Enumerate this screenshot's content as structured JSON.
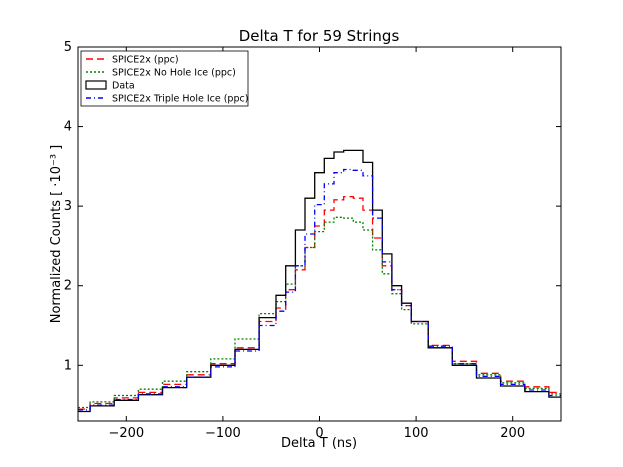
{
  "chart_data": {
    "type": "line",
    "title": "Delta T for 59 Strings",
    "xlabel": "Delta T (ns)",
    "ylabel": "Normalized Counts [ ·10⁻³ ]",
    "xlim": [
      -250,
      250
    ],
    "ylim": [
      0.3,
      5
    ],
    "xticks": [
      -200,
      -100,
      0,
      100,
      200
    ],
    "xtick_labels": [
      "−200",
      "−100",
      "0",
      "100",
      "200"
    ],
    "yticks": [
      1,
      2,
      3,
      4,
      5
    ],
    "ytick_labels": [
      "1",
      "2",
      "3",
      "4",
      "5"
    ],
    "grid": false,
    "legend_position": "top-left",
    "x": [
      -250,
      -225,
      -200,
      -175,
      -150,
      -125,
      -100,
      -75,
      -50,
      -40,
      -30,
      -20,
      -10,
      0,
      10,
      20,
      30,
      40,
      50,
      60,
      70,
      80,
      90,
      100,
      125,
      150,
      175,
      200,
      225,
      250
    ],
    "series": [
      {
        "name": "SPICE2x (ppc)",
        "color": "#ff0000",
        "dash": "7,4",
        "values": [
          0.45,
          0.52,
          0.59,
          0.66,
          0.76,
          0.88,
          1.02,
          1.22,
          1.55,
          1.72,
          1.95,
          2.2,
          2.48,
          2.75,
          2.95,
          3.08,
          3.12,
          3.1,
          2.95,
          2.6,
          2.25,
          1.95,
          1.75,
          1.55,
          1.25,
          1.05,
          0.9,
          0.8,
          0.73,
          0.66
        ]
      },
      {
        "name": "SPICE2x No Hole Ice (ppc)",
        "color": "#008000",
        "dash": "2,2",
        "values": [
          0.47,
          0.54,
          0.62,
          0.7,
          0.8,
          0.92,
          1.08,
          1.33,
          1.65,
          1.8,
          2.02,
          2.25,
          2.48,
          2.68,
          2.8,
          2.86,
          2.85,
          2.8,
          2.7,
          2.45,
          2.15,
          1.9,
          1.7,
          1.52,
          1.22,
          1.02,
          0.88,
          0.78,
          0.71,
          0.64
        ]
      },
      {
        "name": "Data",
        "color": "#000000",
        "dash": "",
        "values": [
          0.42,
          0.49,
          0.56,
          0.63,
          0.72,
          0.85,
          1.0,
          1.2,
          1.6,
          1.88,
          2.25,
          2.7,
          3.1,
          3.42,
          3.6,
          3.68,
          3.7,
          3.7,
          3.55,
          2.95,
          2.4,
          2.0,
          1.78,
          1.55,
          1.22,
          1.0,
          0.84,
          0.74,
          0.67,
          0.6
        ]
      },
      {
        "name": "SPICE2x Triple Hole Ice (ppc)",
        "color": "#0000ff",
        "dash": "5,3,1,3",
        "values": [
          0.44,
          0.5,
          0.57,
          0.64,
          0.73,
          0.85,
          0.98,
          1.18,
          1.5,
          1.68,
          1.92,
          2.25,
          2.65,
          3.02,
          3.28,
          3.42,
          3.46,
          3.45,
          3.38,
          2.85,
          2.3,
          1.95,
          1.75,
          1.55,
          1.24,
          1.02,
          0.86,
          0.76,
          0.69,
          0.62
        ]
      }
    ]
  }
}
